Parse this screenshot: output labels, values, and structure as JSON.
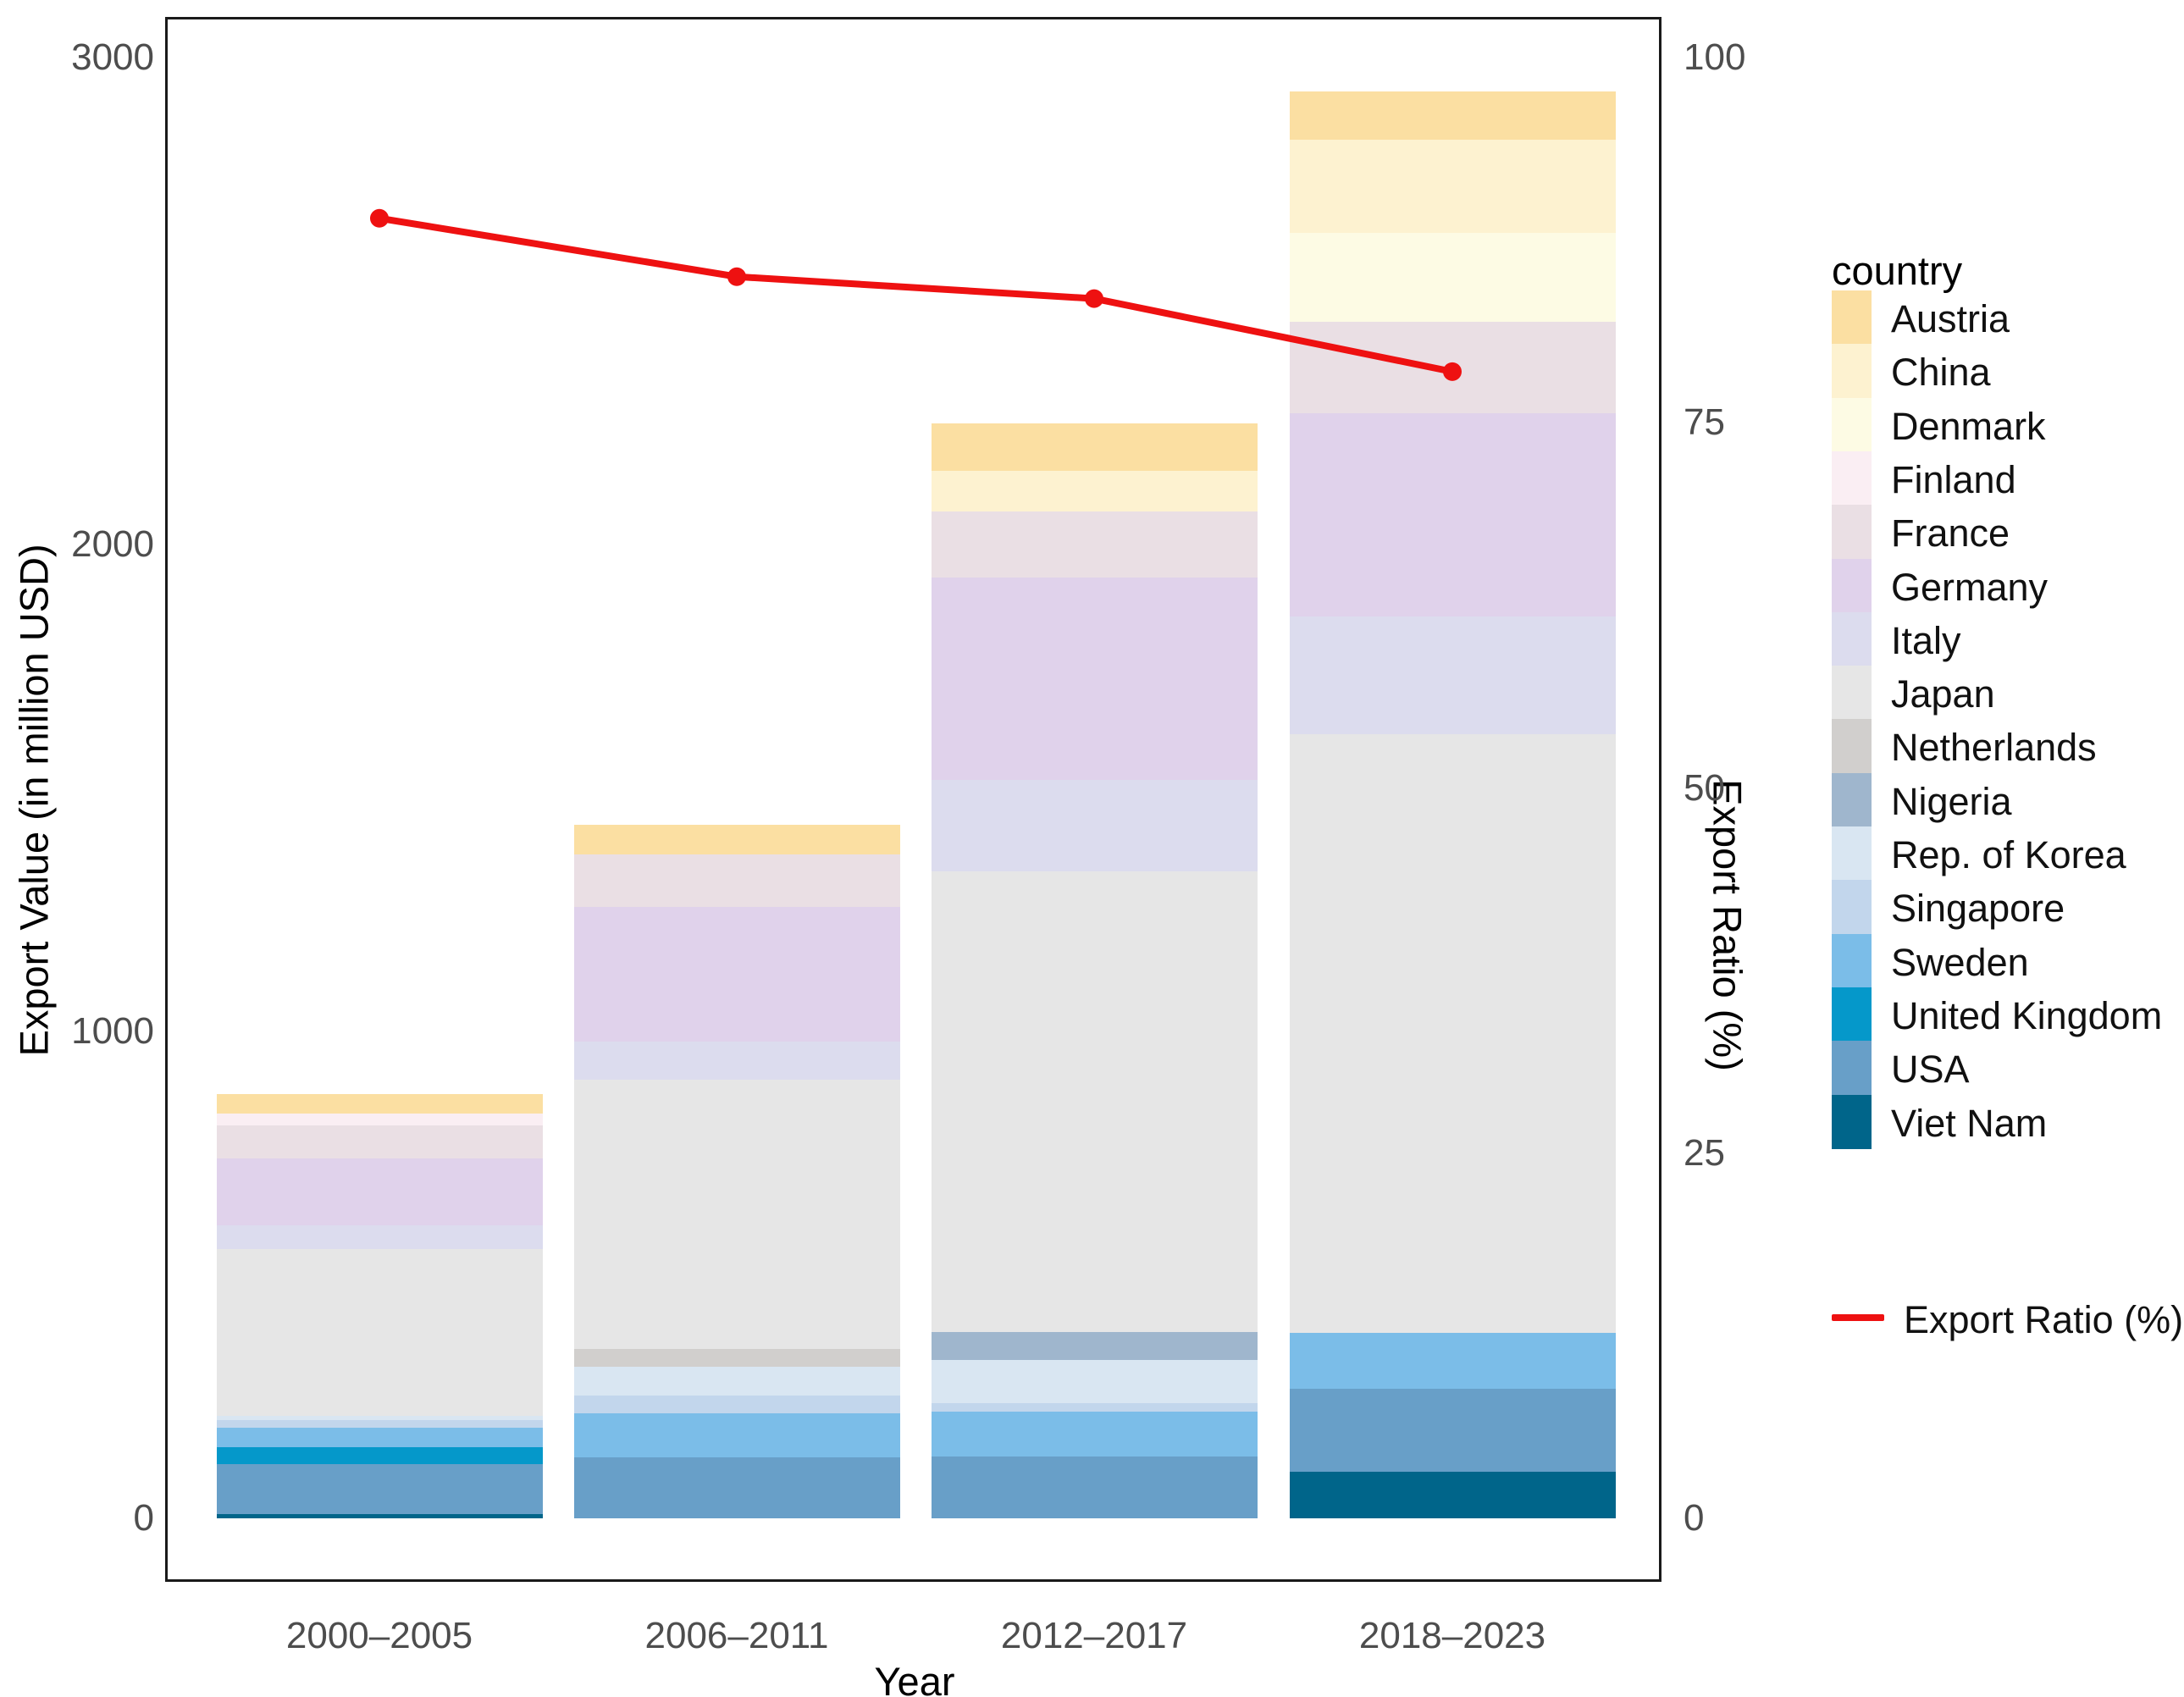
{
  "axes": {
    "left_title": "Export Value (in million USD)",
    "right_title": "Export Ratio (%)",
    "x_title": "Year"
  },
  "legend": {
    "title": "country",
    "line_label": "Export Ratio (%)"
  },
  "colors": {
    "red_line": "#ee1111",
    "tick_text": "#4d4d4d",
    "panel_border": "#1a1a1a"
  },
  "chart_data": {
    "type": "bar",
    "subtype": "stacked-bars-with-line",
    "categories": [
      "2000–2005",
      "2006–2011",
      "2012–2017",
      "2018–2023"
    ],
    "stack_note": "series listed top-of-stack first (alphabetical); rendered bottom-up in reverse order",
    "series": [
      {
        "name": "Austria",
        "color": "#fbdfa2",
        "values": [
          40,
          61,
          96,
          100
        ]
      },
      {
        "name": "China",
        "color": "#fdf2d0",
        "values": [
          0,
          0,
          85,
          191
        ]
      },
      {
        "name": "Denmark",
        "color": "#fdfbe4",
        "values": [
          0,
          0,
          0,
          183
        ]
      },
      {
        "name": "Finland",
        "color": "#faeef3",
        "values": [
          24,
          0,
          0,
          0
        ]
      },
      {
        "name": "France",
        "color": "#eadfe4",
        "values": [
          68,
          108,
          134,
          187
        ]
      },
      {
        "name": "Germany",
        "color": "#e0d2eb",
        "values": [
          137,
          276,
          417,
          418
        ]
      },
      {
        "name": "Italy",
        "color": "#dcdcee",
        "values": [
          49,
          78,
          188,
          242
        ]
      },
      {
        "name": "Japan",
        "color": "#e6e6e6",
        "values": [
          343,
          554,
          945,
          1229
        ]
      },
      {
        "name": "Netherlands",
        "color": "#d1cfcd",
        "values": [
          0,
          36,
          0,
          0
        ]
      },
      {
        "name": "Nigeria",
        "color": "#9fb6cd",
        "values": [
          0,
          0,
          57,
          0
        ]
      },
      {
        "name": "Rep. of Korea",
        "color": "#d9e6f2",
        "values": [
          8,
          59,
          90,
          0
        ]
      },
      {
        "name": "Singapore",
        "color": "#c2d6ec",
        "values": [
          16,
          36,
          17,
          0
        ]
      },
      {
        "name": "Sweden",
        "color": "#7bbde8",
        "values": [
          40,
          91,
          92,
          115
        ]
      },
      {
        "name": "United Kingdom",
        "color": "#0598ca",
        "values": [
          35,
          0,
          0,
          0
        ]
      },
      {
        "name": "USA",
        "color": "#689fc8",
        "values": [
          102,
          125,
          127,
          170
        ]
      },
      {
        "name": "Viet Nam",
        "color": "#00658a",
        "values": [
          9,
          0,
          0,
          96
        ]
      }
    ],
    "bar_totals": [
      871,
      1424,
      2248,
      2931
    ],
    "line_series": {
      "name": "Export Ratio (%)",
      "color": "#ee1111",
      "axis": "right",
      "values": [
        89,
        85,
        83.5,
        78.5
      ]
    },
    "title": "",
    "xlabel": "Year",
    "ylabel_left": "Export Value (in million USD)",
    "ylabel_right": "Export Ratio (%)",
    "left_ticks": [
      0,
      1000,
      2000,
      3000
    ],
    "left_range": [
      0,
      3000
    ],
    "right_ticks": [
      0,
      25,
      50,
      75,
      100
    ],
    "right_range": [
      0,
      100
    ],
    "grid": false,
    "legend_position": "right"
  }
}
